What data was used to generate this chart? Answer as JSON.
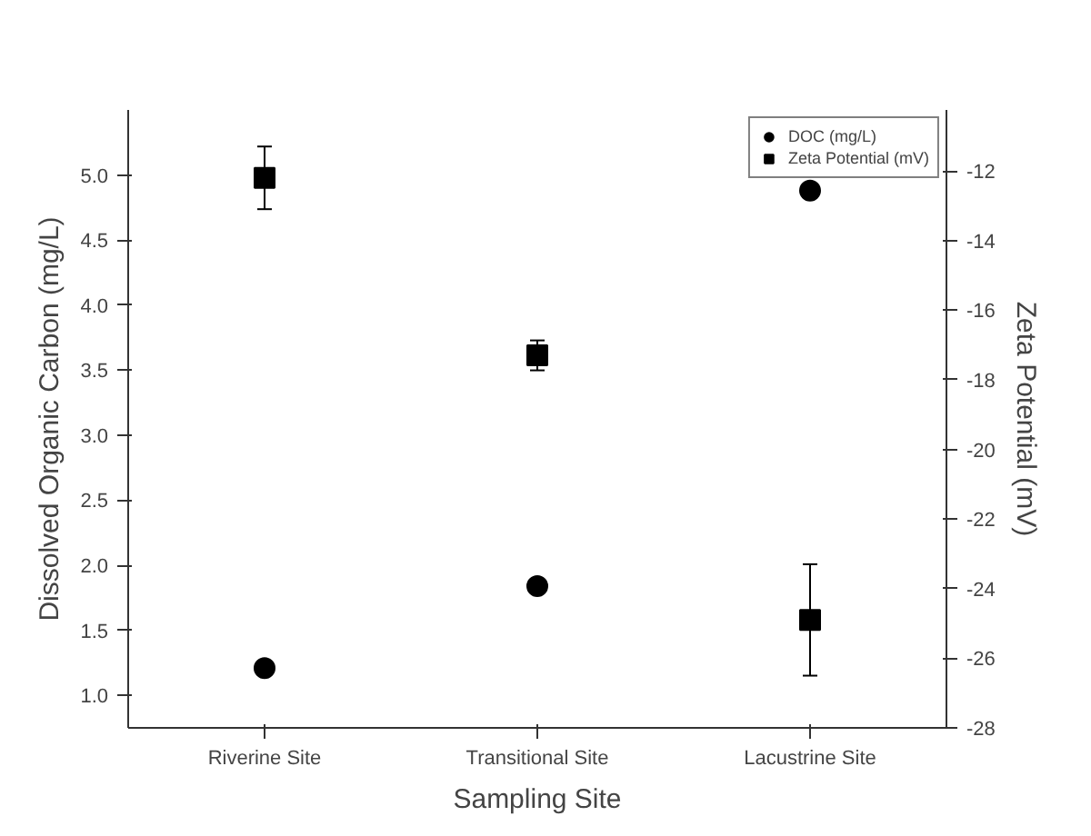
{
  "chart_data": {
    "type": "scatter",
    "xlabel": "Sampling Site",
    "ylabel": "Dissolved Organic Carbon (mg/L)",
    "y2label": "Zeta Potential (mV)",
    "categories": [
      "Riverine Site",
      "Transitional Site",
      "Lacustrine Site"
    ],
    "series": [
      {
        "name": "DOC (mg/L)",
        "color": "#000000",
        "marker": "circle",
        "values": [
          1.21,
          1.84,
          4.88
        ]
      },
      {
        "name": "Zeta Potential (mV)",
        "color": "#000000",
        "marker": "square",
        "axis": "y2",
        "values": [
          -12.2,
          -17.3,
          -24.9
        ],
        "errors": [
          0.9,
          0.43,
          1.6
        ]
      }
    ],
    "ylim": [
      0.75,
      5.5
    ],
    "yticks": [
      {
        "value": 1,
        "label": "1.0"
      },
      1.5,
      {
        "value": 2,
        "label": "2.0"
      },
      2.5,
      {
        "value": 3,
        "label": "3.0"
      },
      3.5,
      {
        "value": 4,
        "label": "4.0"
      },
      4.5,
      {
        "value": 5,
        "label": "5.0"
      }
    ],
    "y2lim": [
      -28,
      -10.25
    ],
    "y2ticks": [
      -28,
      -26,
      -24,
      -22,
      -20,
      -18,
      -16,
      -14,
      -12
    ],
    "grid": false,
    "legend": "top right"
  }
}
